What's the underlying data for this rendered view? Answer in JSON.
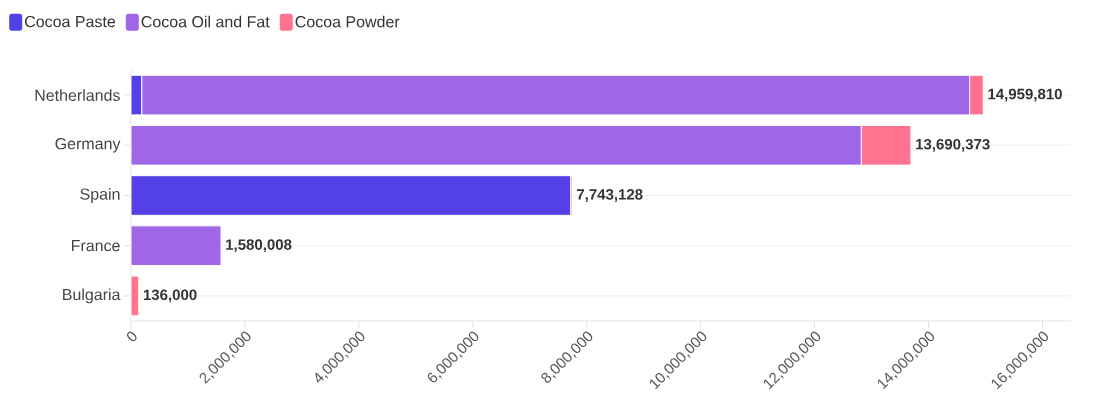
{
  "chart_data": {
    "type": "bar",
    "orientation": "horizontal",
    "stacked": true,
    "categories": [
      "Netherlands",
      "Germany",
      "Spain",
      "France",
      "Bulgaria"
    ],
    "series": [
      {
        "name": "Cocoa Paste",
        "color": "#5340e6",
        "values": [
          190000,
          null,
          7720000,
          null,
          null
        ]
      },
      {
        "name": "Cocoa Oil and Fat",
        "color": "#9f66e6",
        "values": [
          14529810,
          12820000,
          null,
          1580008,
          null
        ]
      },
      {
        "name": "Cocoa Powder",
        "color": "#ff7391",
        "values": [
          240000,
          870373,
          23128,
          null,
          136000
        ]
      }
    ],
    "totals": [
      "14,959,810",
      "13,690,373",
      "7,743,128",
      "1,580,008",
      "136,000"
    ],
    "xlim": [
      0,
      16500000
    ],
    "xticks": [
      0,
      {
        "value": 2000000,
        "label": "2,000,000"
      },
      {
        "value": 4000000,
        "label": "4,000,000"
      },
      {
        "value": 6000000,
        "label": "6,000,000"
      },
      {
        "value": 8000000,
        "label": "8,000,000"
      },
      {
        "value": 10000000,
        "label": "10,000,000"
      },
      {
        "value": 12000000,
        "label": "12,000,000"
      },
      {
        "value": 14000000,
        "label": "14,000,000"
      },
      {
        "value": 16000000,
        "label": "16,000,000"
      }
    ],
    "grid": "y",
    "legend": "top left"
  }
}
